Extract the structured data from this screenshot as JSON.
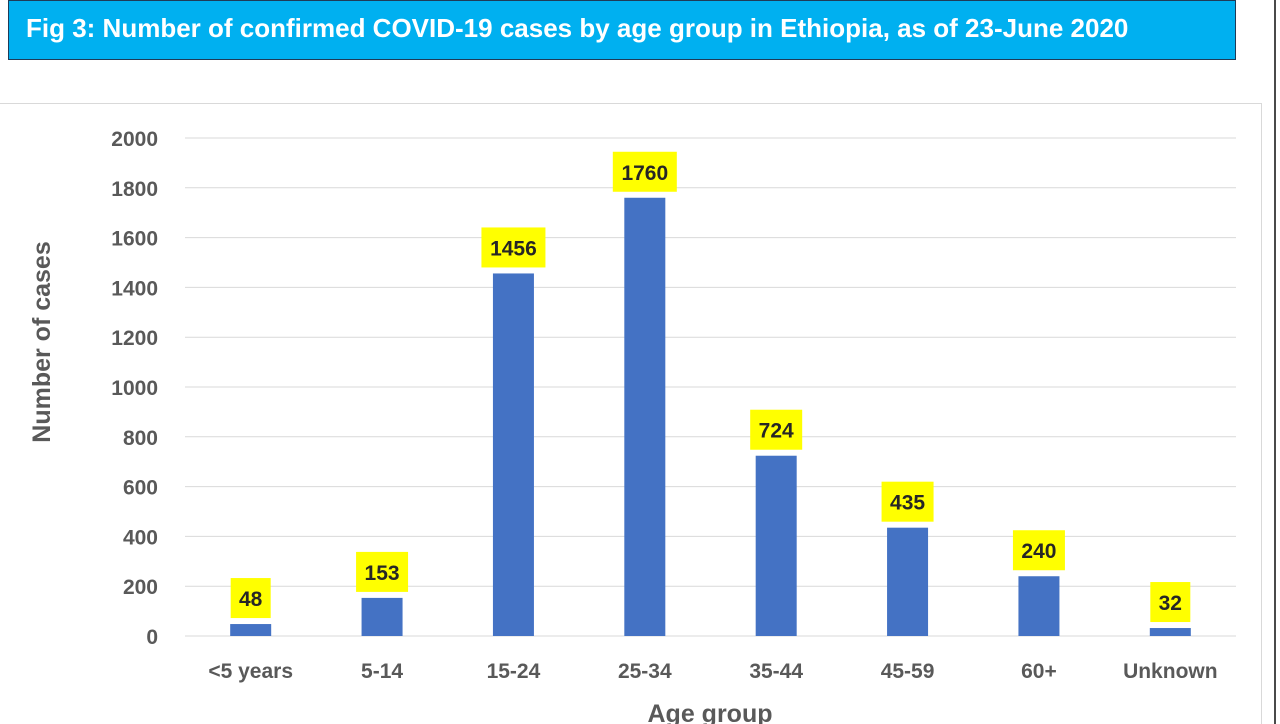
{
  "header": {
    "title": "Fig 3: Number of confirmed COVID-19 cases by age group in Ethiopia, as of 23-June 2020"
  },
  "colors": {
    "title_background": "#00b0f0",
    "bar": "#4472c4",
    "data_label_background": "#ffff00",
    "gridline": "#d9d9d9"
  },
  "chart_data": {
    "type": "bar",
    "title": "Fig 3: Number of confirmed COVID-19 cases by age group in Ethiopia, as of 23-June 2020",
    "xlabel": "Age group",
    "ylabel": "Number of cases",
    "categories": [
      "<5 years",
      "5-14",
      "15-24",
      "25-34",
      "35-44",
      "45-59",
      "60+",
      "Unknown"
    ],
    "values": [
      48,
      153,
      1456,
      1760,
      724,
      435,
      240,
      32
    ],
    "ylim": [
      0,
      2000
    ],
    "yticks": [
      0,
      200,
      400,
      600,
      800,
      1000,
      1200,
      1400,
      1600,
      1800,
      2000
    ],
    "grid": true,
    "legend": "none",
    "data_labels": true
  }
}
